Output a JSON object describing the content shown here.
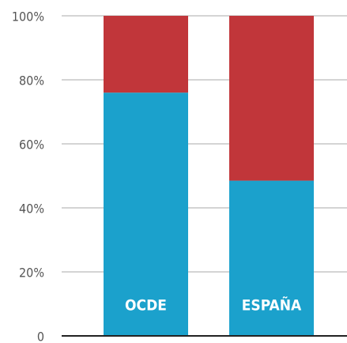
{
  "chart_data": {
    "type": "stacked_bar",
    "categories": [
      "OCDE",
      "ESPAÑA"
    ],
    "series": [
      {
        "color": "#1ba1cc",
        "values": [
          76,
          48.5
        ]
      },
      {
        "color": "#c1363a",
        "values": [
          24,
          51.5
        ]
      }
    ],
    "ylim": [
      0,
      100
    ],
    "yticks": [
      0,
      {
        "value": 20,
        "label": "20%"
      },
      {
        "value": 40,
        "label": "40%"
      },
      {
        "value": 60,
        "label": "60%"
      },
      {
        "value": 80,
        "label": "80%"
      },
      {
        "value": 100,
        "label": "100%"
      }
    ],
    "grid": true
  }
}
